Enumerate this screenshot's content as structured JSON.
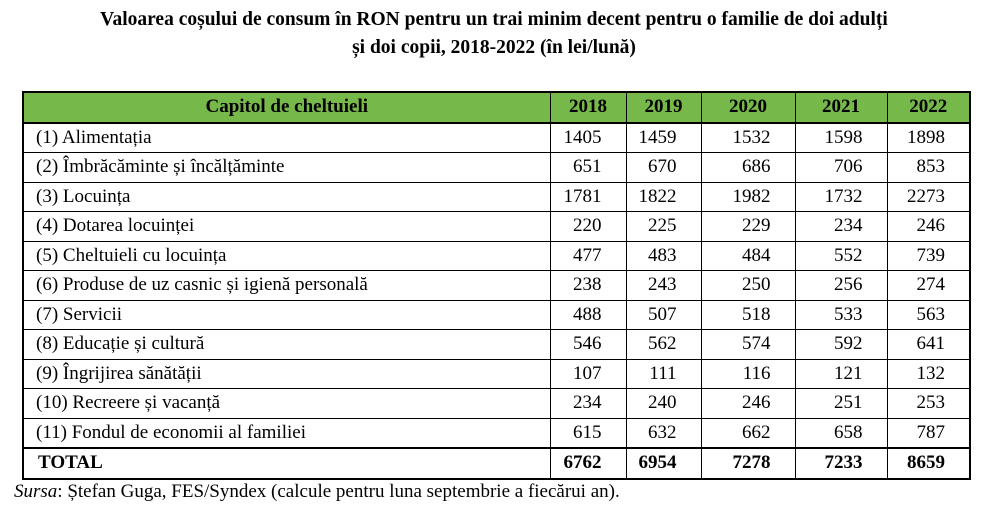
{
  "title": {
    "line1": "Valoarea coșului de consum în RON pentru un trai minim decent pentru o familie de doi adulți",
    "line2": "și doi copii, 2018-2022 (în lei/lună)"
  },
  "table": {
    "header": [
      "Capitol de cheltuieli",
      "2018",
      "2019",
      "2020",
      "2021",
      "2022"
    ],
    "rows": [
      {
        "label": "(1) Alimentația",
        "values": [
          "1405",
          "1459",
          "1532",
          "1598",
          "1898"
        ]
      },
      {
        "label": "(2) Îmbrăcăminte și încălțăminte",
        "values": [
          "651",
          "670",
          "686",
          "706",
          "853"
        ]
      },
      {
        "label": "(3) Locuința",
        "values": [
          "1781",
          "1822",
          "1982",
          "1732",
          "2273"
        ]
      },
      {
        "label": "(4) Dotarea locuinței",
        "values": [
          "220",
          "225",
          "229",
          "234",
          "246"
        ]
      },
      {
        "label": "(5) Cheltuieli cu locuința",
        "values": [
          "477",
          "483",
          "484",
          "552",
          "739"
        ]
      },
      {
        "label": "(6) Produse de uz casnic și igienă personală",
        "values": [
          "238",
          "243",
          "250",
          "256",
          "274"
        ]
      },
      {
        "label": "(7) Servicii",
        "values": [
          "488",
          "507",
          "518",
          "533",
          "563"
        ]
      },
      {
        "label": "(8) Educație și cultură",
        "values": [
          "546",
          "562",
          "574",
          "592",
          "641"
        ]
      },
      {
        "label": "(9) Îngrijirea sănătății",
        "values": [
          "107",
          "111",
          "116",
          "121",
          "132"
        ]
      },
      {
        "label": "(10) Recreere și vacanță",
        "values": [
          "234",
          "240",
          "246",
          "251",
          "253"
        ]
      },
      {
        "label": "(11) Fondul de economii al familiei",
        "values": [
          "615",
          "632",
          "662",
          "658",
          "787"
        ]
      }
    ],
    "total": {
      "label": "TOTAL",
      "values": [
        "6762",
        "6954",
        "7278",
        "7233",
        "8659"
      ]
    }
  },
  "source": {
    "label": "Sursa",
    "text": ": Ștefan Guga, FES/Syndex (calcule pentru luna septembrie a fiecărui an)."
  },
  "colors": {
    "header_background": "#77b84a"
  }
}
